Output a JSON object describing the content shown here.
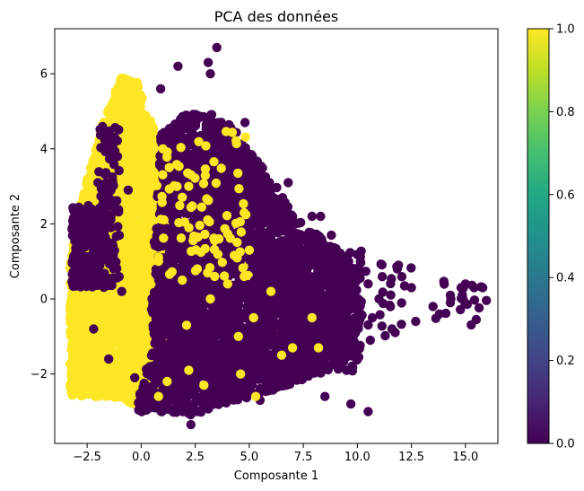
{
  "chart_data": {
    "type": "scatter",
    "title": "PCA des données",
    "xlabel": "Composante 1",
    "ylabel": "Composante 2",
    "xlim": [
      -4.0,
      16.5
    ],
    "ylim": [
      -3.85,
      7.2
    ],
    "xticks": [
      -2.5,
      0.0,
      2.5,
      5.0,
      7.5,
      10.0,
      12.5,
      15.0
    ],
    "xtick_labels": [
      "−2.5",
      "0.0",
      "2.5",
      "5.0",
      "7.5",
      "10.0",
      "12.5",
      "15.0"
    ],
    "yticks": [
      -2,
      0,
      2,
      4,
      6
    ],
    "ytick_labels": [
      "−2",
      "0",
      "2",
      "4",
      "6"
    ],
    "grid": false,
    "colorbar": {
      "range": [
        0.0,
        1.0
      ],
      "ticks": [
        0.0,
        0.2,
        0.4,
        0.6,
        0.8,
        1.0
      ],
      "tick_labels": [
        "0.0",
        "0.2",
        "0.4",
        "0.6",
        "0.8",
        "1.0"
      ],
      "colormap": "viridis"
    },
    "colors": {
      "class_0": "#440154",
      "class_1": "#fde725"
    },
    "regions": [
      {
        "class": 1,
        "shape": "poly",
        "poly": [
          [
            -3.3,
            -2.6
          ],
          [
            -3.3,
            1.0
          ],
          [
            -2.6,
            3.0
          ],
          [
            -1.8,
            4.6
          ],
          [
            -1.0,
            5.9
          ],
          [
            -0.2,
            5.8
          ],
          [
            0.6,
            4.5
          ],
          [
            1.2,
            2.8
          ],
          [
            1.4,
            0.5
          ],
          [
            1.0,
            -2.0
          ],
          [
            0.2,
            -2.9
          ],
          [
            -1.5,
            -2.6
          ]
        ],
        "n": 3200
      },
      {
        "class": 0,
        "shape": "poly",
        "poly": [
          [
            -0.3,
            -3.0
          ],
          [
            0.4,
            -1.5
          ],
          [
            0.6,
            1.5
          ],
          [
            0.9,
            4.4
          ],
          [
            2.0,
            4.9
          ],
          [
            3.0,
            5.0
          ],
          [
            4.2,
            4.6
          ],
          [
            5.5,
            3.6
          ],
          [
            6.5,
            2.8
          ],
          [
            7.5,
            2.0
          ],
          [
            8.5,
            1.6
          ],
          [
            9.5,
            1.0
          ],
          [
            10.3,
            -0.3
          ],
          [
            9.6,
            -1.6
          ],
          [
            8.0,
            -2.0
          ],
          [
            6.5,
            -2.4
          ],
          [
            4.5,
            -2.7
          ],
          [
            2.3,
            -3.1
          ]
        ],
        "n": 4200
      },
      {
        "class": 0,
        "shape": "rect",
        "rect": [
          -3.2,
          0.3,
          -1.8,
          2.5
        ],
        "n": 260
      },
      {
        "class": 0,
        "shape": "rect",
        "rect": [
          -2.0,
          0.3,
          -1.0,
          4.6
        ],
        "n": 120
      },
      {
        "class": 1,
        "shape": "rect",
        "rect": [
          0.4,
          0.5,
          5.0,
          4.5
        ],
        "n": 90
      },
      {
        "class": 0,
        "shape": "rect",
        "rect": [
          5.0,
          -2.0,
          10.2,
          1.4
        ],
        "n": 300
      },
      {
        "class": 0,
        "shape": "rect",
        "rect": [
          10.0,
          -1.0,
          12.6,
          1.0
        ],
        "n": 24
      },
      {
        "class": 0,
        "shape": "rect",
        "rect": [
          13.5,
          -0.7,
          16.0,
          0.5
        ],
        "n": 18
      }
    ],
    "points": [
      {
        "x": 3.5,
        "y": 6.7,
        "class": 0
      },
      {
        "x": 3.1,
        "y": 6.3,
        "class": 0
      },
      {
        "x": 3.2,
        "y": 6.0,
        "class": 0
      },
      {
        "x": 1.7,
        "y": 6.2,
        "class": 0
      },
      {
        "x": 0.9,
        "y": 5.6,
        "class": 0
      },
      {
        "x": 4.8,
        "y": 4.7,
        "class": 0
      },
      {
        "x": 6.8,
        "y": 3.1,
        "class": 0
      },
      {
        "x": 9.6,
        "y": 1.0,
        "class": 0
      },
      {
        "x": 10.5,
        "y": 0.4,
        "class": 0
      },
      {
        "x": 11.9,
        "y": 0.9,
        "class": 0
      },
      {
        "x": 12.5,
        "y": 0.3,
        "class": 0
      },
      {
        "x": 12.7,
        "y": -0.6,
        "class": 0
      },
      {
        "x": 11.6,
        "y": -0.8,
        "class": 0
      },
      {
        "x": 10.5,
        "y": -3.0,
        "class": 0
      },
      {
        "x": 9.7,
        "y": -2.8,
        "class": 0
      },
      {
        "x": 8.5,
        "y": -2.6,
        "class": 0
      },
      {
        "x": 2.3,
        "y": -3.35,
        "class": 0
      },
      {
        "x": 2.6,
        "y": -3.0,
        "class": 0
      },
      {
        "x": 3.0,
        "y": -2.8,
        "class": 0
      },
      {
        "x": 5.5,
        "y": -2.7,
        "class": 0
      },
      {
        "x": 13.5,
        "y": -0.2,
        "class": 0
      },
      {
        "x": 13.8,
        "y": -0.4,
        "class": 0
      },
      {
        "x": 14.3,
        "y": -0.1,
        "class": 0
      },
      {
        "x": 14.8,
        "y": 0.3,
        "class": 0
      },
      {
        "x": 15.0,
        "y": 0.4,
        "class": 0
      },
      {
        "x": 15.4,
        "y": 0.3,
        "class": 0
      },
      {
        "x": 15.8,
        "y": 0.3,
        "class": 0
      },
      {
        "x": 15.5,
        "y": -0.55,
        "class": 0
      },
      {
        "x": 14.3,
        "y": 0.1,
        "class": 0
      },
      {
        "x": 11.0,
        "y": 0.0,
        "class": 0
      },
      {
        "x": 10.1,
        "y": -0.1,
        "class": 0
      },
      {
        "x": 10.6,
        "y": -1.1,
        "class": 0
      },
      {
        "x": 9.2,
        "y": -1.8,
        "class": 0
      },
      {
        "x": 7.9,
        "y": 2.2,
        "class": 0
      },
      {
        "x": 8.3,
        "y": 2.2,
        "class": 0
      },
      {
        "x": 8.8,
        "y": 1.7,
        "class": 0
      },
      {
        "x": -1.4,
        "y": 2.5,
        "class": 0
      },
      {
        "x": -2.5,
        "y": 1.8,
        "class": 0
      },
      {
        "x": -0.6,
        "y": 2.9,
        "class": 0
      },
      {
        "x": -1.3,
        "y": 1.2,
        "class": 0
      },
      {
        "x": -0.9,
        "y": 0.2,
        "class": 0
      },
      {
        "x": -2.2,
        "y": -0.8,
        "class": 0
      },
      {
        "x": -1.5,
        "y": -1.6,
        "class": 0
      },
      {
        "x": -0.3,
        "y": -2.1,
        "class": 0
      },
      {
        "x": 1.2,
        "y": -2.2,
        "class": 1
      },
      {
        "x": 2.1,
        "y": -0.7,
        "class": 1
      },
      {
        "x": 3.4,
        "y": 0.6,
        "class": 1
      },
      {
        "x": 4.5,
        "y": -1.0,
        "class": 1
      },
      {
        "x": 5.2,
        "y": -0.5,
        "class": 1
      },
      {
        "x": 4.0,
        "y": 0.4,
        "class": 1
      },
      {
        "x": 3.2,
        "y": 0.0,
        "class": 1
      },
      {
        "x": 2.6,
        "y": 0.8,
        "class": 1
      },
      {
        "x": 1.9,
        "y": 0.5,
        "class": 1
      },
      {
        "x": 5.0,
        "y": 1.3,
        "class": 1
      },
      {
        "x": 7.9,
        "y": -0.5,
        "class": 1
      },
      {
        "x": 6.5,
        "y": -1.5,
        "class": 1
      },
      {
        "x": 2.2,
        "y": -1.9,
        "class": 1
      },
      {
        "x": 5.3,
        "y": -2.6,
        "class": 1
      },
      {
        "x": 0.8,
        "y": -2.6,
        "class": 1
      },
      {
        "x": 2.9,
        "y": -2.3,
        "class": 1
      },
      {
        "x": 4.6,
        "y": -2.0,
        "class": 1
      },
      {
        "x": 3.6,
        "y": 1.6,
        "class": 1
      },
      {
        "x": 2.2,
        "y": 3.0,
        "class": 1
      },
      {
        "x": 1.3,
        "y": 3.5,
        "class": 1
      },
      {
        "x": 1.0,
        "y": 4.0,
        "class": 1
      },
      {
        "x": 0.8,
        "y": 1.0,
        "class": 1
      },
      {
        "x": 6.0,
        "y": 0.2,
        "class": 1
      },
      {
        "x": 7.0,
        "y": -1.3,
        "class": 1
      },
      {
        "x": 8.2,
        "y": -1.3,
        "class": 1
      }
    ]
  }
}
